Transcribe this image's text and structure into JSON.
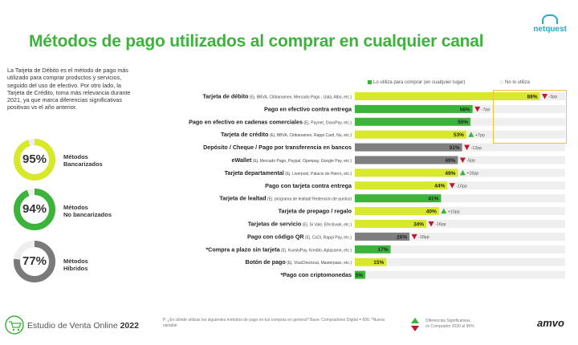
{
  "title": "Métodos de pago utilizados al comprar en cualquier canal",
  "brand_netquest": "netquest",
  "brand_amvo": "amvo",
  "intro_text": "La Tarjeta de Débito es el método de pago más utilizado para comprar productos y servicios, seguido del uso de efectivo. Por otro lado, la Tarjeta de Crédito, toma más relevancia durante 2021, ya que marca diferencias significativas positivas vs el año anterior.",
  "donuts": [
    {
      "pct_label": "95%",
      "value": 95,
      "label": "Métodos\nBancarizados",
      "color": "#d8e82c"
    },
    {
      "pct_label": "94%",
      "value": 94,
      "label": "Métodos\nNo bancarizados",
      "color": "#3cb33a"
    },
    {
      "pct_label": "77%",
      "value": 77,
      "label": "Métodos\nHíbridos",
      "color": "#7a7a7a"
    }
  ],
  "legend": {
    "used": "Lo utiliza para comprar (en cualquier lugar)",
    "not_used": "No lo utiliza"
  },
  "colors": {
    "bancarizado": "#d8e82c",
    "no_bancarizado": "#3cb33a",
    "hibrido": "#7f7f7f",
    "background": "#efefef",
    "up": "#3cb33a",
    "down": "#c0152a",
    "highlight": "#f0c23c"
  },
  "chart_data": {
    "type": "bar",
    "orientation": "horizontal",
    "stacked_100": true,
    "categories": [
      {
        "name": "Tarjeta de débito",
        "detail": "(Ej. BBVA, Citibanamex, Mercado Pago , Ualá, Albo, etc.)",
        "value": 88,
        "label": "88%",
        "group": "bancarizado",
        "change": "down",
        "change_label": "-3pp"
      },
      {
        "name": "Pago en efectivo contra entrega",
        "detail": "",
        "value": 56,
        "label": "56%",
        "group": "no_bancarizado",
        "change": "down",
        "change_label": "-7pp"
      },
      {
        "name": "Pago en efectivo en cadenas comerciales",
        "detail": "(Ej. Paynet, OxxoPay, etc.)",
        "value": 55,
        "label": "55%",
        "group": "no_bancarizado",
        "change": "",
        "change_label": ""
      },
      {
        "name": "Tarjeta de crédito",
        "detail": "(Ej. BBVA, Citibanamex, Rappi Card, Nu, etc.)",
        "value": 53,
        "label": "53%",
        "group": "bancarizado",
        "change": "up",
        "change_label": "+7pp"
      },
      {
        "name": "Depósito / Cheque / Pago por transferencia en bancos",
        "detail": "",
        "value": 51,
        "label": "51%",
        "group": "hibrido",
        "change": "down",
        "change_label": "-12pp"
      },
      {
        "name": "eWallet",
        "detail": "(Ej. Mercado Pago, Paypal, Openpay, Google Pay, etc.)",
        "value": 49,
        "label": "49%",
        "group": "hibrido",
        "change": "down",
        "change_label": "-5pp"
      },
      {
        "name": "Tarjeta departamental",
        "detail": "(Ej. Liverpool, Palacio de Hierro, etc.)",
        "value": 49,
        "label": "49%",
        "group": "bancarizado",
        "change": "up",
        "change_label": "+16pp"
      },
      {
        "name": "Pago con tarjeta contra entrega",
        "detail": "",
        "value": 44,
        "label": "44%",
        "group": "bancarizado",
        "change": "down",
        "change_label": "-10pp"
      },
      {
        "name": "Tarjeta de lealtad",
        "detail": "(Ej. programa de lealtad/ Redención de puntos)",
        "value": 41,
        "label": "41%",
        "group": "no_bancarizado",
        "change": "",
        "change_label": ""
      },
      {
        "name": "Tarjeta de prepago / regalo",
        "detail": "",
        "value": 40,
        "label": "40%",
        "group": "bancarizado",
        "change": "up",
        "change_label": "+10pp"
      },
      {
        "name": "Tarjetas de servicio",
        "detail": "(Ej. Si Vale, Efectivale, etc.)",
        "value": 34,
        "label": "34%",
        "group": "bancarizado",
        "change": "down",
        "change_label": "-16pp"
      },
      {
        "name": "Pago con código QR",
        "detail": "(Ej. CoDi, Rappi Pay, etc.)",
        "value": 26,
        "label": "26%",
        "group": "hibrido",
        "change": "down",
        "change_label": "-18pp"
      },
      {
        "name": "*Compra a plazo sin tarjeta",
        "detail": "(Ej. KueskiPay, Kredito, Aplazame, etc.)",
        "value": 17,
        "label": "17%",
        "group": "no_bancarizado",
        "change": "",
        "change_label": ""
      },
      {
        "name": "Botón de pago",
        "detail": "(Ej. VisaCheckout, Masterpass, etc.)",
        "value": 15,
        "label": "15%",
        "group": "bancarizado",
        "change": "",
        "change_label": ""
      },
      {
        "name": "*Pago con criptomonedas",
        "detail": "",
        "value": 5,
        "label": "5%",
        "group": "no_bancarizado",
        "change": "",
        "change_label": ""
      }
    ],
    "xlim": [
      0,
      100
    ],
    "grid": false
  },
  "footer": {
    "study": "Estudio de Venta Online",
    "year": "2022",
    "question": "P. ¿En dónde utilizas los siguientes métodos de pago en tus compras en general? Base: Compradores Digital = 606. *Nueva variable",
    "diff_line1": "Diferencias Significativas",
    "diff_line2": "vs Comprador 2020 al 95%"
  }
}
